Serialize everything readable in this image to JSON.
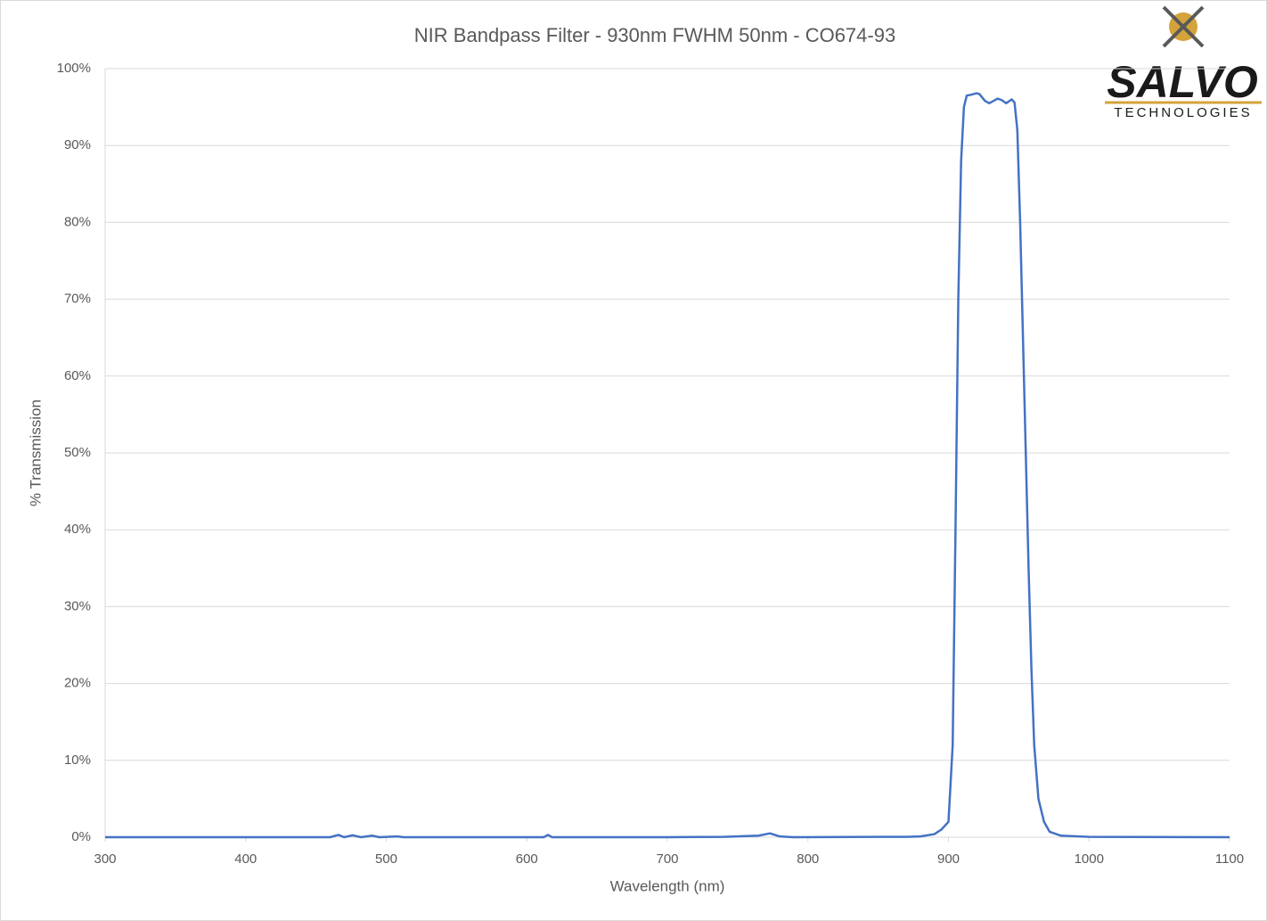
{
  "chart_data": {
    "type": "line",
    "title": "NIR Bandpass Filter - 930nm FWHM 50nm - CO674-93",
    "x_label": "Wavelength (nm)",
    "y_label": "% Transmission",
    "logo_text": [
      "SALVO",
      "TECHNOLOGIES"
    ],
    "xlim": [
      300,
      1100
    ],
    "xticks": [
      300,
      400,
      500,
      600,
      700,
      800,
      900,
      1000,
      1100
    ],
    "ylim": [
      0,
      100
    ],
    "yticks": [
      {
        "value": 0,
        "label": "0%"
      },
      {
        "value": 10,
        "label": "10%"
      },
      {
        "value": 20,
        "label": "20%"
      },
      {
        "value": 30,
        "label": "30%"
      },
      {
        "value": 40,
        "label": "40%"
      },
      {
        "value": 50,
        "label": "50%"
      },
      {
        "value": 60,
        "label": "60%"
      },
      {
        "value": 70,
        "label": "70%"
      },
      {
        "value": 80,
        "label": "80%"
      },
      {
        "value": 90,
        "label": "90%"
      },
      {
        "value": 100,
        "label": "100%"
      }
    ],
    "grid": true,
    "x": [
      300,
      370,
      460,
      466,
      470,
      476,
      482,
      490,
      495,
      508,
      512,
      612,
      615,
      618,
      700,
      740,
      765,
      773,
      780,
      790,
      850,
      870,
      880,
      890,
      895,
      898,
      900,
      903,
      905,
      907,
      909,
      911,
      913,
      916,
      920,
      922,
      926,
      929,
      932,
      935,
      938,
      941,
      945,
      947,
      949,
      951,
      953,
      955,
      957,
      959,
      961,
      964,
      968,
      972,
      980,
      1000,
      1100
    ],
    "series": [
      {
        "color": "#4472c4",
        "values": [
          0,
          0,
          0,
          0.3,
          0,
          0.25,
          0,
          0.2,
          0,
          0.1,
          0,
          0,
          0.3,
          0,
          0,
          0.05,
          0.2,
          0.5,
          0.1,
          0,
          0.05,
          0.05,
          0.1,
          0.4,
          1.0,
          1.6,
          2,
          12,
          40,
          70,
          88,
          95,
          96.5,
          96.6,
          96.8,
          96.7,
          95.8,
          95.5,
          95.8,
          96.1,
          95.9,
          95.5,
          96.0,
          95.6,
          92,
          80,
          65,
          50,
          35,
          22,
          12,
          5,
          2,
          0.7,
          0.2,
          0.05,
          0
        ]
      }
    ]
  }
}
